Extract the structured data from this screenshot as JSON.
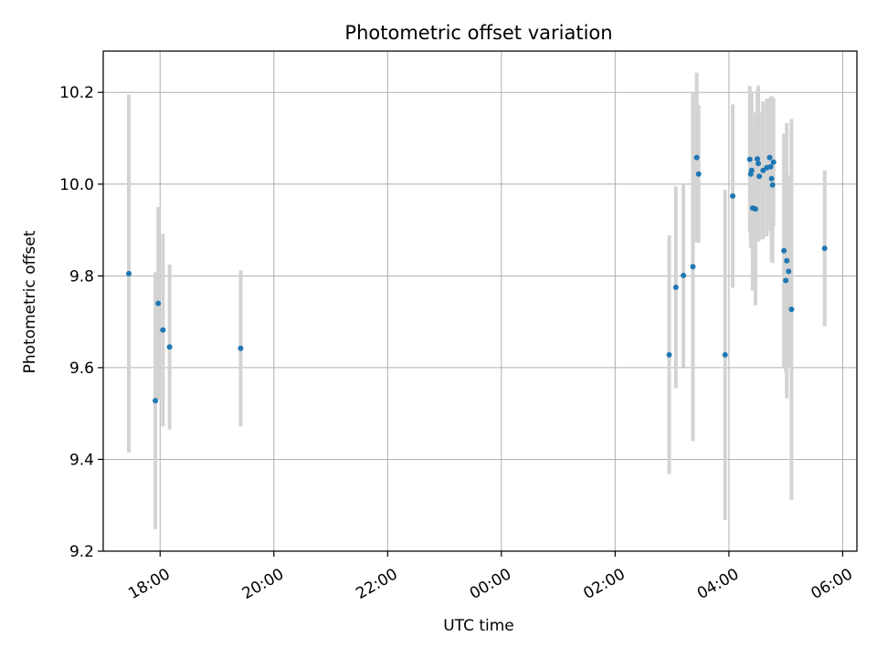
{
  "chart_data": {
    "type": "scatter",
    "title": "Photometric offset variation",
    "xlabel": "UTC time",
    "ylabel": "Photometric offset",
    "x_axis_kind": "time",
    "xlim": [
      "17:00",
      "06:15"
    ],
    "ylim": [
      9.2,
      10.29
    ],
    "grid": true,
    "x_ticks": [
      "18:00",
      "20:00",
      "22:00",
      "00:00",
      "02:00",
      "04:00",
      "06:00"
    ],
    "y_ticks": [
      "9.2",
      "9.4",
      "9.6",
      "9.8",
      "10.0",
      "10.2"
    ],
    "colors": {
      "point": "#1f77b4",
      "errorbar": "#d3d3d3",
      "grid": "#b0b0b0"
    },
    "points": [
      {
        "t": "17:27",
        "y": 9.805,
        "err": 0.39
      },
      {
        "t": "17:55",
        "y": 9.528,
        "err": 0.28
      },
      {
        "t": "17:58",
        "y": 9.74,
        "err": 0.21
      },
      {
        "t": "18:03",
        "y": 9.682,
        "err": 0.21
      },
      {
        "t": "18:10",
        "y": 9.645,
        "err": 0.18
      },
      {
        "t": "19:25",
        "y": 9.642,
        "err": 0.17
      },
      {
        "t": "02:57",
        "y": 9.628,
        "err": 0.26
      },
      {
        "t": "03:04",
        "y": 9.775,
        "err": 0.22
      },
      {
        "t": "03:12",
        "y": 9.801,
        "err": 0.2
      },
      {
        "t": "03:22",
        "y": 9.82,
        "err": 0.38
      },
      {
        "t": "03:26",
        "y": 10.058,
        "err": 0.185
      },
      {
        "t": "03:28",
        "y": 10.022,
        "err": 0.15
      },
      {
        "t": "03:56",
        "y": 9.628,
        "err": 0.36
      },
      {
        "t": "04:04",
        "y": 9.974,
        "err": 0.2
      },
      {
        "t": "04:22",
        "y": 10.054,
        "err": 0.16
      },
      {
        "t": "04:23",
        "y": 10.022,
        "err": 0.16
      },
      {
        "t": "04:24",
        "y": 10.03,
        "err": 0.17
      },
      {
        "t": "04:25",
        "y": 9.948,
        "err": 0.18
      },
      {
        "t": "04:28",
        "y": 9.946,
        "err": 0.21
      },
      {
        "t": "04:30",
        "y": 10.055,
        "err": 0.15
      },
      {
        "t": "04:31",
        "y": 10.045,
        "err": 0.17
      },
      {
        "t": "04:32",
        "y": 10.017,
        "err": 0.14
      },
      {
        "t": "04:36",
        "y": 10.03,
        "err": 0.15
      },
      {
        "t": "04:40",
        "y": 10.036,
        "err": 0.15
      },
      {
        "t": "04:43",
        "y": 10.058,
        "err": 0.13
      },
      {
        "t": "04:44",
        "y": 10.038,
        "err": 0.14
      },
      {
        "t": "04:45",
        "y": 10.012,
        "err": 0.18
      },
      {
        "t": "04:46",
        "y": 9.998,
        "err": 0.17
      },
      {
        "t": "04:47",
        "y": 10.048,
        "err": 0.14
      },
      {
        "t": "04:58",
        "y": 9.855,
        "err": 0.255
      },
      {
        "t": "05:00",
        "y": 9.79,
        "err": 0.2
      },
      {
        "t": "05:01",
        "y": 9.833,
        "err": 0.3
      },
      {
        "t": "05:03",
        "y": 9.81,
        "err": 0.21
      },
      {
        "t": "05:06",
        "y": 9.727,
        "err": 0.415
      },
      {
        "t": "05:41",
        "y": 9.86,
        "err": 0.17
      }
    ]
  }
}
